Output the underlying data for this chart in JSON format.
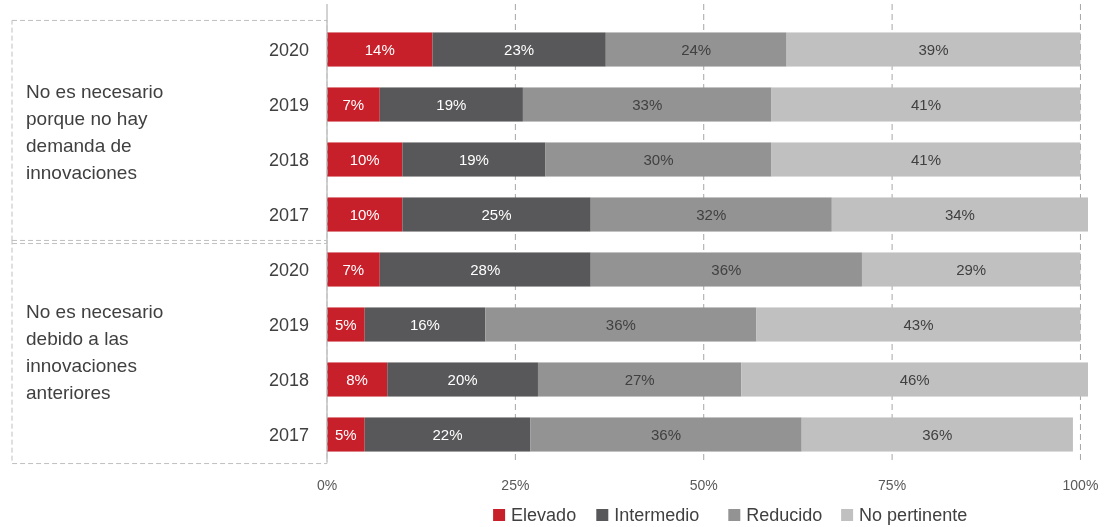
{
  "chart_data": {
    "type": "bar",
    "orientation": "horizontal",
    "stacked": true,
    "categories": [
      "2020",
      "2019",
      "2018",
      "2017",
      "2020",
      "2019",
      "2018",
      "2017"
    ],
    "series": [
      {
        "name": "Elevado",
        "color": "#c8202b",
        "values": [
          14,
          7,
          10,
          10,
          7,
          5,
          8,
          5
        ],
        "value_labels": [
          "14%",
          "7%",
          "10%",
          "10%",
          "7%",
          "5%",
          "8%",
          "5%"
        ]
      },
      {
        "name": "Intermedio",
        "color": "#58585a",
        "values": [
          23,
          19,
          19,
          25,
          28,
          16,
          20,
          22
        ],
        "value_labels": [
          "23%",
          "19%",
          "19%",
          "25%",
          "28%",
          "16%",
          "20%",
          "22%"
        ]
      },
      {
        "name": "Reducido",
        "color": "#939393",
        "values": [
          24,
          33,
          30,
          32,
          36,
          36,
          27,
          36
        ],
        "value_labels": [
          "24%",
          "33%",
          "30%",
          "32%",
          "36%",
          "36%",
          "27%",
          "36%"
        ]
      },
      {
        "name": "No pertinente",
        "color": "#c0c0c0",
        "values": [
          39,
          41,
          41,
          34,
          29,
          43,
          46,
          36
        ],
        "value_labels": [
          "39%",
          "41%",
          "41%",
          "34%",
          "29%",
          "43%",
          "46%",
          "36%"
        ]
      }
    ],
    "xlim": [
      0,
      101
    ],
    "xticks": [
      {
        "value": 0,
        "label": "0%"
      },
      {
        "value": 25,
        "label": "25%"
      },
      {
        "value": 50,
        "label": "50%"
      },
      {
        "value": 75,
        "label": "75%"
      },
      {
        "value": 100,
        "label": "100%"
      }
    ],
    "grid": "x",
    "legend": "bottom",
    "annotations": [
      "No es necesario porque no hay demanda de innovaciones",
      "No es necesario debido a las innovaciones anteriores"
    ]
  }
}
